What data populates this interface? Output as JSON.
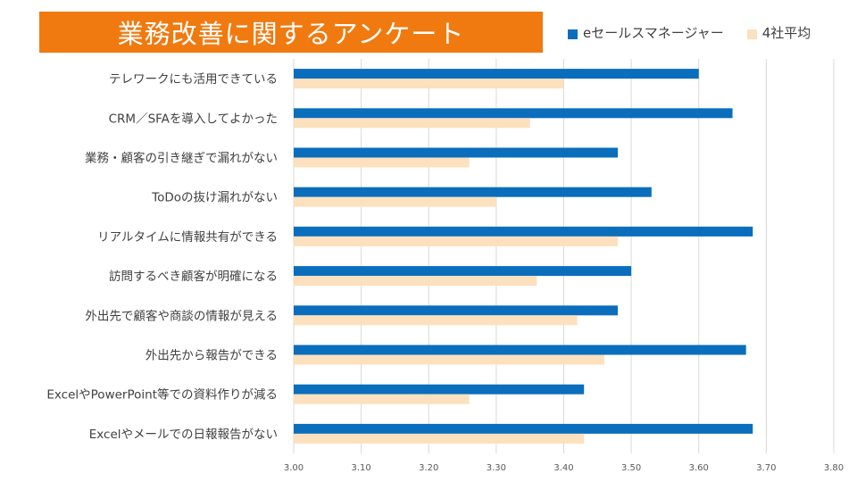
{
  "title": "業務改善に関するアンケート",
  "colors": {
    "title_bg": "#f07a10",
    "series1": "#0a6ebd",
    "series2": "#fde0bd",
    "grid": "#d9d9d9"
  },
  "chart_data": {
    "type": "bar",
    "orientation": "horizontal",
    "title": "業務改善に関するアンケート",
    "categories": [
      "テレワークにも活用できている",
      "CRM／SFAを導入してよかった",
      "業務・顧客の引き継ぎで漏れがない",
      "ToDoの抜け漏れがない",
      "リアルタイムに情報共有ができる",
      "訪問するべき顧客が明確になる",
      "外出先で顧客や商談の情報が見える",
      "外出先から報告ができる",
      "ExcelやPowerPoint等での資料作りが減る",
      "Excelやメールでの日報報告がない"
    ],
    "series": [
      {
        "name": "eセールスマネージャー",
        "color": "#0a6ebd",
        "values": [
          3.6,
          3.65,
          3.48,
          3.53,
          3.68,
          3.5,
          3.48,
          3.67,
          3.43,
          3.68
        ]
      },
      {
        "name": "4社平均",
        "color": "#fde0bd",
        "values": [
          3.4,
          3.35,
          3.26,
          3.3,
          3.48,
          3.36,
          3.42,
          3.46,
          3.26,
          3.43
        ]
      }
    ],
    "xlim": [
      3.0,
      3.8
    ],
    "xticks": [
      "3.00",
      "3.10",
      "3.20",
      "3.30",
      "3.40",
      "3.50",
      "3.60",
      "3.70",
      "3.80"
    ],
    "grid": true,
    "legend": "top-right"
  }
}
